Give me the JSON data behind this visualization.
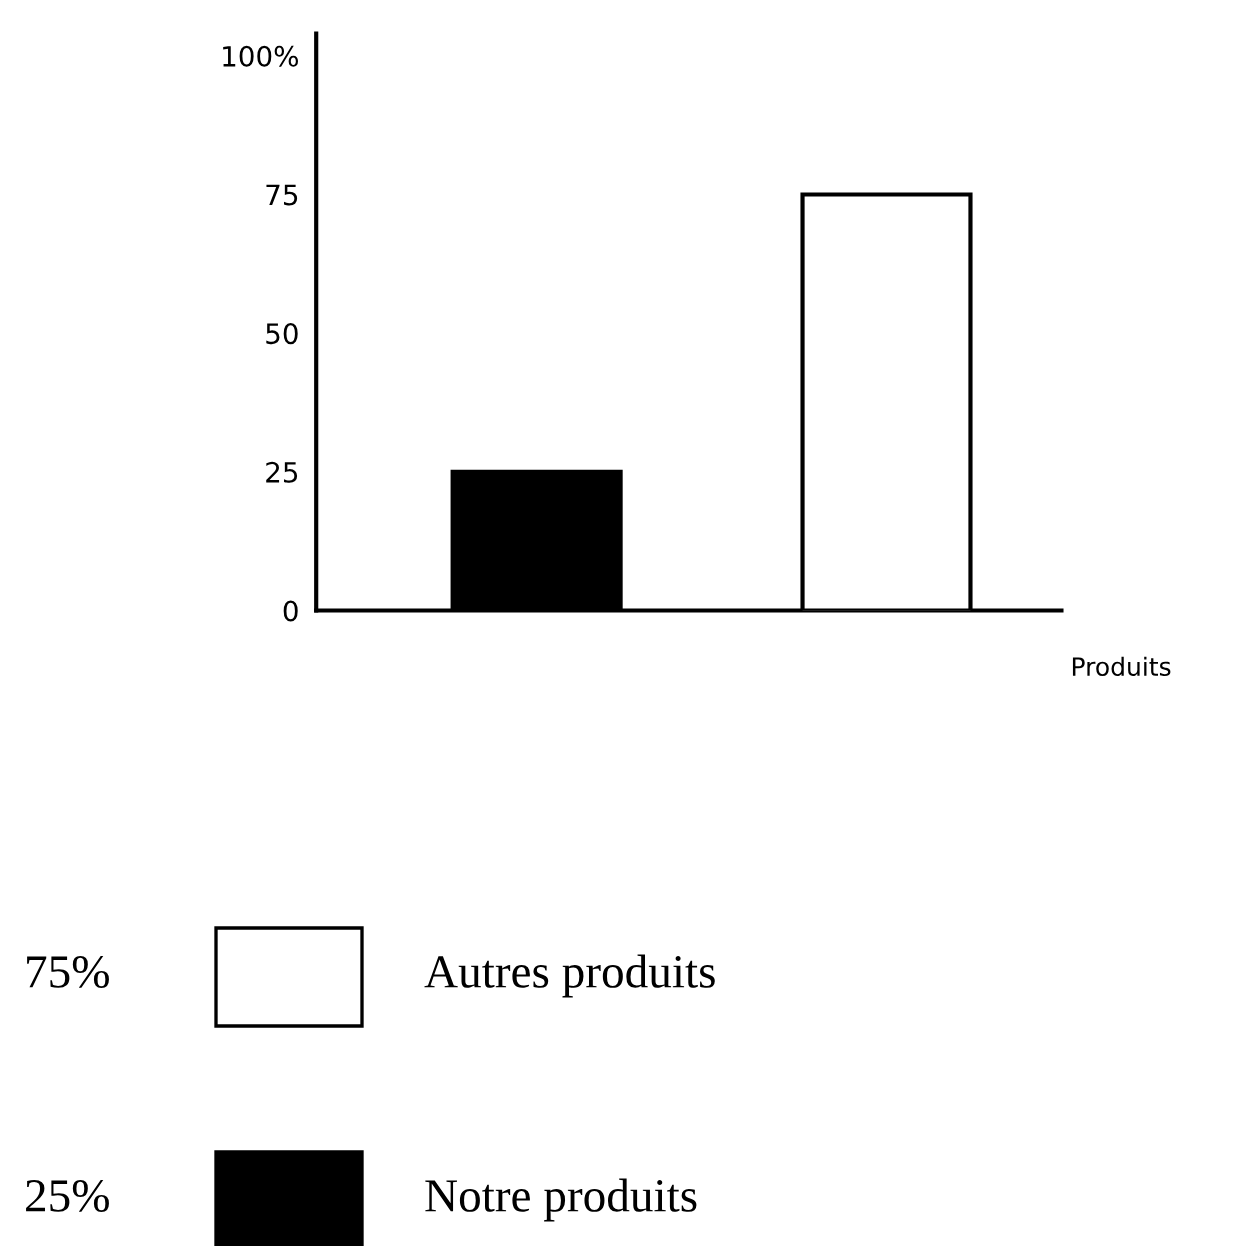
{
  "chart_data": {
    "type": "bar",
    "xlabel": "Produits",
    "categories": [
      null,
      null
    ],
    "series": [
      {
        "name": "Autres produits",
        "color": "#ffffff",
        "values": [
          null,
          75
        ]
      },
      {
        "name": "Notre produits",
        "color": "#000000",
        "values": [
          25,
          null
        ]
      }
    ],
    "annotations": [
      "75%",
      "25%"
    ],
    "ylim": [
      0,
      104
    ],
    "yticks": [
      0,
      25,
      50,
      75,
      {
        "value": 100,
        "label": "100%"
      }
    ],
    "grid": false,
    "legend": "bottom"
  }
}
